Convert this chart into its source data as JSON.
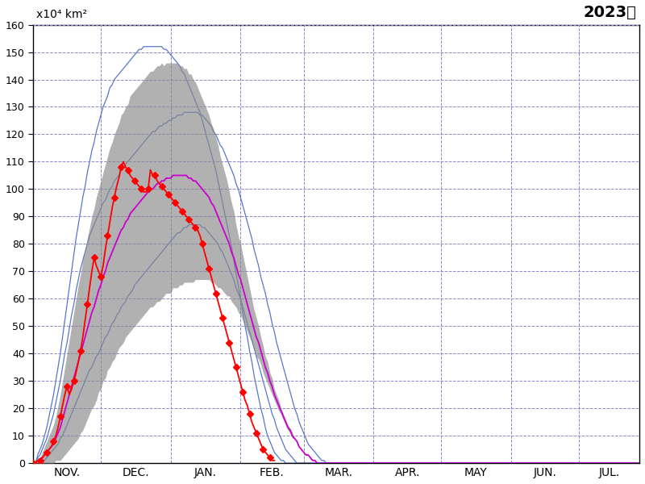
{
  "title_left": "x10⁴ km²",
  "title_right": "2023年",
  "ylim": [
    0,
    160
  ],
  "yticks": [
    0,
    10,
    20,
    30,
    40,
    50,
    60,
    70,
    80,
    90,
    100,
    110,
    120,
    130,
    140,
    150,
    160
  ],
  "months_labels": [
    "NOV.",
    "DEC.",
    "JAN.",
    "FEB.",
    "MAR.",
    "APR.",
    "MAY",
    "JUN.",
    "JUL."
  ],
  "background_color": "#ffffff",
  "grid_color": "#8888cc",
  "mean_color": "#cc00cc",
  "shade_color": "#888888",
  "max_min_color": "#5577cc",
  "obs_color": "#ff0000",
  "obs_marker": "D",
  "obs_markersize": 4,
  "month_starts": [
    0,
    30,
    61,
    92,
    120,
    151,
    181,
    212,
    242
  ],
  "n_points": 270,
  "mean_data": [
    0,
    0,
    1,
    1,
    2,
    3,
    4,
    5,
    6,
    7,
    9,
    11,
    13,
    16,
    19,
    22,
    25,
    28,
    31,
    34,
    37,
    40,
    43,
    46,
    49,
    52,
    55,
    57,
    60,
    63,
    65,
    68,
    70,
    73,
    75,
    77,
    79,
    81,
    83,
    85,
    86,
    88,
    89,
    91,
    92,
    93,
    94,
    95,
    96,
    97,
    98,
    99,
    100,
    100,
    101,
    102,
    102,
    103,
    103,
    104,
    104,
    104,
    105,
    105,
    105,
    105,
    105,
    105,
    105,
    104,
    104,
    103,
    103,
    102,
    101,
    100,
    99,
    98,
    97,
    95,
    94,
    92,
    90,
    88,
    86,
    84,
    82,
    80,
    77,
    75,
    72,
    69,
    67,
    64,
    61,
    58,
    55,
    52,
    49,
    46,
    44,
    41,
    38,
    35,
    33,
    30,
    28,
    25,
    23,
    21,
    19,
    17,
    15,
    13,
    12,
    10,
    9,
    8,
    6,
    5,
    4,
    3,
    3,
    2,
    1,
    1,
    0,
    0,
    0,
    0,
    0,
    0,
    0,
    0,
    0,
    0,
    0,
    0,
    0,
    0,
    0,
    0,
    0,
    0,
    0,
    0,
    0,
    0,
    0,
    0,
    0,
    0,
    0,
    0,
    0,
    0,
    0,
    0,
    0,
    0,
    0,
    0,
    0,
    0,
    0,
    0,
    0,
    0,
    0,
    0,
    0,
    0,
    0,
    0,
    0,
    0,
    0,
    0,
    0,
    0,
    0,
    0,
    0,
    0,
    0,
    0,
    0,
    0,
    0,
    0,
    0,
    0,
    0,
    0,
    0,
    0,
    0,
    0,
    0,
    0,
    0,
    0,
    0,
    0,
    0,
    0,
    0,
    0,
    0,
    0,
    0,
    0,
    0,
    0,
    0,
    0,
    0,
    0,
    0,
    0,
    0,
    0,
    0,
    0,
    0,
    0,
    0,
    0,
    0,
    0,
    0,
    0,
    0,
    0,
    0,
    0,
    0,
    0,
    0,
    0,
    0,
    0,
    0,
    0,
    0,
    0,
    0,
    0,
    0,
    0,
    0,
    0,
    0,
    0,
    0,
    0,
    0,
    0,
    0,
    0,
    0,
    0,
    0,
    0,
    0,
    0,
    0,
    0,
    0,
    0
  ],
  "std_data": [
    0,
    0,
    1,
    1,
    2,
    3,
    4,
    5,
    6,
    7,
    8,
    10,
    12,
    14,
    16,
    18,
    20,
    22,
    24,
    26,
    28,
    29,
    31,
    32,
    33,
    34,
    35,
    36,
    37,
    37,
    38,
    38,
    39,
    39,
    40,
    40,
    41,
    41,
    41,
    42,
    42,
    42,
    42,
    43,
    43,
    43,
    43,
    43,
    43,
    43,
    43,
    43,
    43,
    43,
    43,
    43,
    43,
    43,
    42,
    42,
    42,
    42,
    41,
    41,
    41,
    40,
    40,
    39,
    39,
    38,
    38,
    37,
    36,
    35,
    34,
    33,
    32,
    31,
    30,
    29,
    28,
    27,
    26,
    24,
    23,
    22,
    21,
    19,
    18,
    17,
    15,
    14,
    13,
    12,
    11,
    10,
    9,
    8,
    7,
    7,
    6,
    5,
    5,
    4,
    4,
    3,
    3,
    2,
    2,
    2,
    1,
    1,
    1,
    1,
    1,
    1,
    0,
    0,
    0,
    0,
    0,
    0,
    0,
    0,
    0,
    0,
    0,
    0,
    0,
    0,
    0,
    0,
    0,
    0,
    0,
    0,
    0,
    0,
    0,
    0,
    0,
    0,
    0,
    0,
    0,
    0,
    0,
    0,
    0,
    0,
    0,
    0,
    0,
    0,
    0,
    0,
    0,
    0,
    0,
    0,
    0,
    0,
    0,
    0,
    0,
    0,
    0,
    0,
    0,
    0,
    0,
    0,
    0,
    0,
    0,
    0,
    0,
    0,
    0,
    0,
    0,
    0,
    0,
    0,
    0,
    0,
    0,
    0,
    0,
    0,
    0,
    0,
    0,
    0,
    0,
    0,
    0,
    0,
    0,
    0,
    0,
    0,
    0,
    0,
    0,
    0,
    0,
    0,
    0,
    0,
    0,
    0,
    0,
    0,
    0,
    0,
    0,
    0,
    0,
    0,
    0,
    0,
    0,
    0,
    0,
    0,
    0,
    0,
    0,
    0,
    0,
    0,
    0,
    0,
    0,
    0,
    0,
    0,
    0,
    0,
    0,
    0,
    0,
    0,
    0,
    0,
    0,
    0,
    0,
    0,
    0,
    0,
    0,
    0,
    0,
    0,
    0,
    0,
    0,
    0,
    0,
    0,
    0,
    0,
    0,
    0,
    0,
    0,
    0,
    0
  ],
  "max_data": [
    0,
    0,
    2,
    3,
    5,
    7,
    9,
    12,
    15,
    18,
    22,
    26,
    30,
    35,
    40,
    44,
    49,
    54,
    58,
    63,
    67,
    71,
    74,
    77,
    80,
    83,
    85,
    87,
    89,
    91,
    93,
    95,
    96,
    98,
    100,
    101,
    103,
    104,
    105,
    107,
    108,
    109,
    110,
    111,
    112,
    113,
    114,
    115,
    116,
    117,
    118,
    119,
    120,
    121,
    121,
    122,
    123,
    123,
    124,
    124,
    125,
    125,
    126,
    126,
    127,
    127,
    127,
    128,
    128,
    128,
    128,
    128,
    128,
    128,
    127,
    127,
    126,
    125,
    124,
    123,
    121,
    120,
    118,
    116,
    115,
    113,
    111,
    109,
    107,
    105,
    102,
    100,
    97,
    94,
    91,
    88,
    85,
    82,
    78,
    75,
    72,
    68,
    65,
    62,
    58,
    55,
    51,
    48,
    44,
    41,
    38,
    35,
    32,
    29,
    26,
    23,
    20,
    18,
    15,
    13,
    11,
    9,
    7,
    6,
    5,
    4,
    3,
    2,
    1,
    1,
    0,
    0,
    0,
    0,
    0,
    0,
    0,
    0,
    0,
    0,
    0,
    0,
    0,
    0,
    0,
    0,
    0,
    0,
    0,
    0,
    0,
    0,
    0,
    0,
    0,
    0,
    0,
    0,
    0,
    0,
    0,
    0,
    0,
    0,
    0,
    0,
    0,
    0,
    0,
    0,
    0,
    0,
    0,
    0,
    0,
    0,
    0,
    0,
    0,
    0,
    0,
    0,
    0,
    0,
    0,
    0,
    0,
    0,
    0,
    0,
    0,
    0,
    0,
    0,
    0,
    0,
    0,
    0,
    0,
    0,
    0,
    0,
    0,
    0,
    0,
    0,
    0,
    0,
    0,
    0,
    0,
    0,
    0,
    0,
    0,
    0,
    0,
    0,
    0,
    0,
    0,
    0,
    0,
    0,
    0,
    0,
    0,
    0,
    0,
    0,
    0,
    0,
    0,
    0,
    0,
    0,
    0,
    0,
    0,
    0,
    0,
    0,
    0,
    0,
    0,
    0,
    0,
    0,
    0,
    0,
    0,
    0,
    0,
    0,
    0,
    0,
    0,
    0,
    0,
    0,
    0,
    0,
    0,
    0,
    0,
    0,
    0,
    0,
    0,
    0
  ],
  "min_data": [
    0,
    0,
    0,
    0,
    1,
    1,
    2,
    3,
    4,
    5,
    6,
    7,
    9,
    10,
    12,
    14,
    16,
    18,
    20,
    22,
    24,
    26,
    28,
    30,
    32,
    34,
    35,
    37,
    39,
    40,
    42,
    44,
    46,
    47,
    49,
    51,
    52,
    54,
    55,
    57,
    58,
    59,
    61,
    62,
    63,
    65,
    66,
    67,
    68,
    69,
    70,
    71,
    72,
    73,
    74,
    75,
    76,
    77,
    78,
    79,
    80,
    81,
    82,
    83,
    84,
    84,
    85,
    86,
    86,
    87,
    87,
    87,
    87,
    87,
    87,
    86,
    86,
    85,
    84,
    83,
    82,
    81,
    80,
    78,
    77,
    75,
    73,
    71,
    69,
    67,
    64,
    62,
    60,
    57,
    54,
    51,
    48,
    45,
    42,
    39,
    36,
    33,
    30,
    27,
    24,
    21,
    18,
    16,
    13,
    11,
    9,
    7,
    5,
    4,
    3,
    2,
    1,
    0,
    0,
    0,
    0,
    0,
    0,
    0,
    0,
    0,
    0,
    0,
    0,
    0,
    0,
    0,
    0,
    0,
    0,
    0,
    0,
    0,
    0,
    0,
    0,
    0,
    0,
    0,
    0,
    0,
    0,
    0,
    0,
    0,
    0,
    0,
    0,
    0,
    0,
    0,
    0,
    0,
    0,
    0,
    0,
    0,
    0,
    0,
    0,
    0,
    0,
    0,
    0,
    0,
    0,
    0,
    0,
    0,
    0,
    0,
    0,
    0,
    0,
    0,
    0,
    0,
    0,
    0,
    0,
    0,
    0,
    0,
    0,
    0,
    0,
    0,
    0,
    0,
    0,
    0,
    0,
    0,
    0,
    0,
    0,
    0,
    0,
    0,
    0,
    0,
    0,
    0,
    0,
    0,
    0,
    0,
    0,
    0,
    0,
    0,
    0,
    0,
    0,
    0,
    0,
    0,
    0,
    0,
    0,
    0,
    0,
    0,
    0,
    0,
    0,
    0,
    0,
    0,
    0,
    0,
    0,
    0,
    0,
    0,
    0,
    0,
    0,
    0,
    0,
    0,
    0,
    0,
    0,
    0,
    0,
    0,
    0,
    0,
    0,
    0,
    0,
    0,
    0,
    0,
    0,
    0,
    0,
    0,
    0,
    0,
    0,
    0,
    0,
    0
  ],
  "max2_data": [
    0,
    0,
    3,
    5,
    7,
    10,
    13,
    17,
    21,
    25,
    30,
    35,
    40,
    46,
    52,
    58,
    64,
    70,
    76,
    82,
    87,
    92,
    97,
    101,
    106,
    110,
    114,
    117,
    121,
    124,
    127,
    130,
    132,
    134,
    137,
    138,
    140,
    141,
    142,
    143,
    144,
    145,
    146,
    147,
    148,
    149,
    150,
    151,
    151,
    152,
    152,
    152,
    152,
    152,
    152,
    152,
    152,
    152,
    151,
    151,
    150,
    149,
    148,
    147,
    146,
    145,
    143,
    142,
    140,
    138,
    136,
    134,
    132,
    130,
    128,
    125,
    122,
    119,
    116,
    113,
    110,
    107,
    103,
    99,
    95,
    91,
    87,
    83,
    79,
    74,
    69,
    65,
    60,
    55,
    50,
    46,
    41,
    37,
    32,
    28,
    24,
    20,
    17,
    13,
    10,
    8,
    6,
    4,
    3,
    2,
    1,
    1,
    0,
    0,
    0,
    0,
    0,
    0,
    0,
    0,
    0,
    0,
    0,
    0,
    0,
    0,
    0,
    0,
    0,
    0,
    0,
    0,
    0,
    0,
    0,
    0,
    0,
    0,
    0,
    0,
    0,
    0,
    0,
    0,
    0,
    0,
    0,
    0,
    0,
    0,
    0,
    0,
    0,
    0,
    0,
    0,
    0,
    0,
    0,
    0,
    0,
    0,
    0,
    0,
    0,
    0,
    0,
    0,
    0,
    0,
    0,
    0,
    0,
    0,
    0,
    0,
    0,
    0,
    0,
    0,
    0,
    0,
    0,
    0,
    0,
    0,
    0,
    0,
    0,
    0,
    0,
    0,
    0,
    0,
    0,
    0,
    0,
    0,
    0,
    0,
    0,
    0,
    0,
    0,
    0,
    0,
    0,
    0,
    0,
    0,
    0,
    0,
    0,
    0,
    0,
    0,
    0,
    0,
    0,
    0,
    0,
    0,
    0,
    0,
    0,
    0,
    0,
    0,
    0,
    0,
    0,
    0,
    0,
    0,
    0,
    0,
    0,
    0,
    0,
    0,
    0,
    0,
    0,
    0,
    0,
    0,
    0,
    0,
    0,
    0,
    0,
    0,
    0,
    0,
    0,
    0,
    0,
    0,
    0,
    0,
    0,
    0,
    0,
    0,
    0,
    0,
    0,
    0,
    0,
    0
  ],
  "obs_2023": [
    0,
    0,
    1,
    1,
    2,
    3,
    4,
    5,
    6,
    8,
    10,
    13,
    17,
    21,
    25,
    28,
    25,
    27,
    30,
    33,
    37,
    41,
    46,
    52,
    58,
    64,
    70,
    75,
    72,
    70,
    68,
    72,
    78,
    83,
    88,
    93,
    97,
    101,
    104,
    108,
    110,
    108,
    107,
    105,
    104,
    103,
    102,
    101,
    100,
    99,
    99,
    100,
    107,
    105,
    105,
    103,
    102,
    101,
    100,
    99,
    98,
    97,
    96,
    95,
    94,
    93,
    92,
    91,
    90,
    89,
    88,
    87,
    86,
    85,
    83,
    80,
    77,
    74,
    71,
    68,
    65,
    62,
    59,
    56,
    53,
    50,
    47,
    44,
    41,
    38,
    35,
    32,
    29,
    26,
    23,
    21,
    18,
    15,
    13,
    11,
    9,
    7,
    5,
    4,
    3,
    2,
    1,
    1,
    0,
    0,
    0,
    0,
    0,
    0,
    0,
    0,
    0,
    0,
    0,
    0,
    0,
    0,
    0,
    0,
    0,
    0,
    0,
    0,
    0,
    0,
    0,
    0,
    0,
    0,
    0,
    0,
    0,
    0,
    0,
    0,
    0,
    0,
    0,
    0,
    0,
    0,
    0,
    0,
    0,
    0,
    0,
    0,
    0,
    0,
    0,
    0,
    0,
    0,
    0,
    0,
    0,
    0,
    0,
    0,
    0,
    0,
    0,
    0,
    0,
    0,
    0,
    0,
    0,
    0,
    0,
    0,
    0,
    0,
    0,
    0,
    0,
    0,
    0,
    0,
    0,
    0,
    0,
    0,
    0,
    0,
    0,
    0,
    0,
    0,
    0,
    0,
    0,
    0,
    0,
    0,
    0,
    0,
    0,
    0,
    0,
    0,
    0,
    0,
    0,
    0,
    0,
    0,
    0,
    0,
    0,
    0,
    0,
    0,
    0,
    0,
    0,
    0,
    0,
    0,
    0,
    0,
    0,
    0,
    0,
    0,
    0,
    0,
    0,
    0,
    0,
    0,
    0,
    0,
    0,
    0,
    0,
    0,
    0,
    0,
    0,
    0,
    0,
    0,
    0,
    0,
    0,
    0,
    0,
    0,
    0,
    0,
    0,
    0,
    0,
    0,
    0,
    0,
    0,
    0,
    0,
    0,
    0,
    0,
    0,
    0
  ]
}
